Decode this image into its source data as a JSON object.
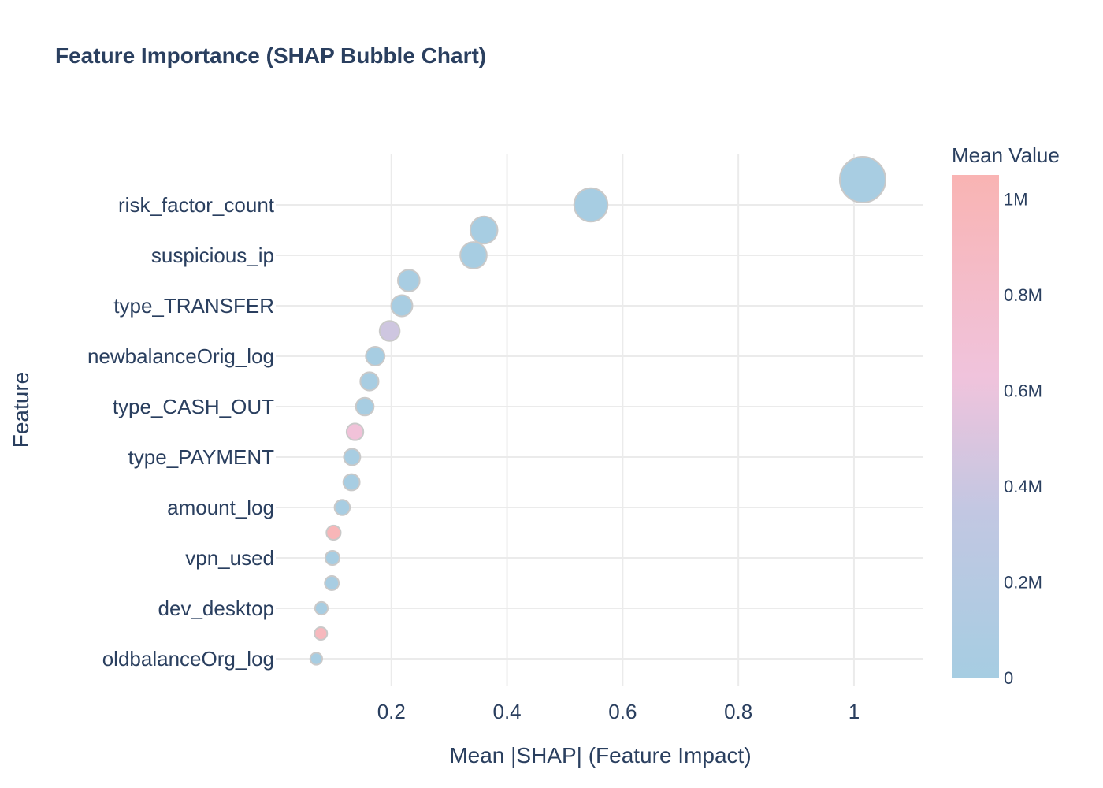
{
  "chart_data": {
    "type": "scatter",
    "title": "Feature Importance (SHAP Bubble Chart)",
    "xlabel": "Mean |SHAP| (Feature Impact)",
    "ylabel": "Feature",
    "xlim": [
      0,
      1.12
    ],
    "x_ticks": [
      0.2,
      0.4,
      0.6,
      0.8,
      1
    ],
    "x_tick_labels": [
      "0.2",
      "0.4",
      "0.6",
      "0.8",
      "1"
    ],
    "grid": true,
    "y_tick_labels": [
      "risk_factor_count",
      "suspicious_ip",
      "type_TRANSFER",
      "newbalanceOrig_log",
      "type_CASH_OUT",
      "type_PAYMENT",
      "amount_log",
      "vpn_used",
      "dev_desktop",
      "oldbalanceOrg_log"
    ],
    "colorbar": {
      "title": "Mean Value",
      "range": [
        0,
        1050000
      ],
      "ticks": [
        0,
        200000,
        400000,
        600000,
        800000,
        1000000
      ],
      "tick_labels": [
        "0",
        "0.2M",
        "0.4M",
        "0.6M",
        "0.8M",
        "1M"
      ],
      "colorscale": [
        "#a6cde2",
        "#c2c7e2",
        "#f0c3dc",
        "#f9b4b3"
      ]
    },
    "points": [
      {
        "x": 1.015,
        "mean_value": 20000
      },
      {
        "x": 0.545,
        "mean_value": 15000
      },
      {
        "x": 0.36,
        "mean_value": 12000
      },
      {
        "x": 0.342,
        "mean_value": 10000
      },
      {
        "x": 0.23,
        "mean_value": 20000
      },
      {
        "x": 0.218,
        "mean_value": 25000
      },
      {
        "x": 0.197,
        "mean_value": 420000
      },
      {
        "x": 0.172,
        "mean_value": 15000
      },
      {
        "x": 0.162,
        "mean_value": 20000
      },
      {
        "x": 0.154,
        "mean_value": 15000
      },
      {
        "x": 0.137,
        "mean_value": 660000
      },
      {
        "x": 0.132,
        "mean_value": 20000
      },
      {
        "x": 0.131,
        "mean_value": 15000
      },
      {
        "x": 0.115,
        "mean_value": 20000
      },
      {
        "x": 0.1,
        "mean_value": 1000000
      },
      {
        "x": 0.098,
        "mean_value": 15000
      },
      {
        "x": 0.097,
        "mean_value": 20000
      },
      {
        "x": 0.079,
        "mean_value": 15000
      },
      {
        "x": 0.078,
        "mean_value": 950000
      },
      {
        "x": 0.07,
        "mean_value": 10000
      }
    ]
  }
}
